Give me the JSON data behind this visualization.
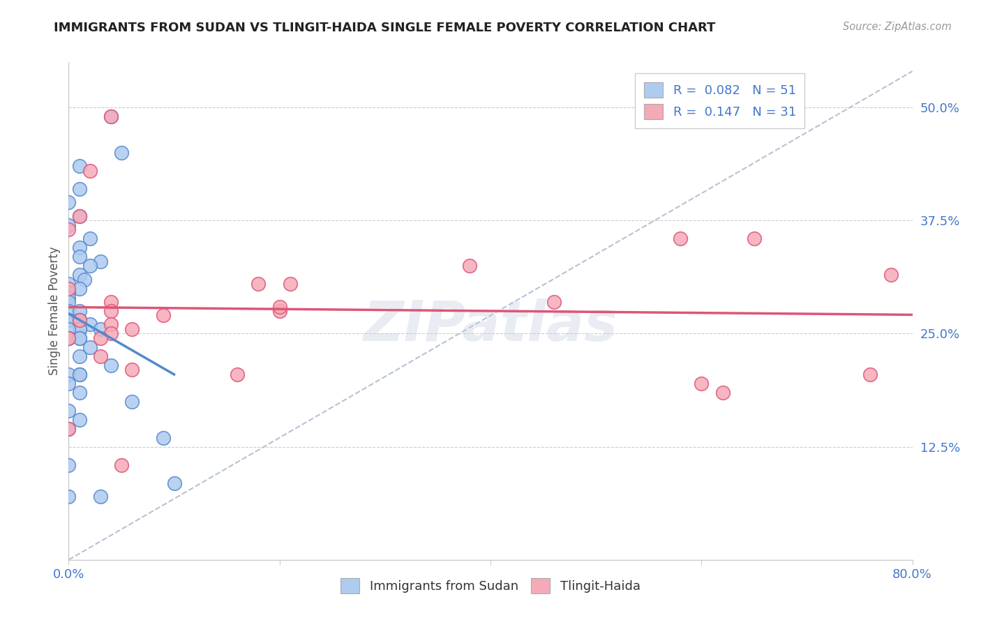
{
  "title": "IMMIGRANTS FROM SUDAN VS TLINGIT-HAIDA SINGLE FEMALE POVERTY CORRELATION CHART",
  "source": "Source: ZipAtlas.com",
  "ylabel": "Single Female Poverty",
  "xlabel": "",
  "xlim": [
    0.0,
    0.8
  ],
  "ylim": [
    0.0,
    0.55
  ],
  "yticks": [
    0.125,
    0.25,
    0.375,
    0.5
  ],
  "ytick_labels": [
    "12.5%",
    "25.0%",
    "37.5%",
    "50.0%"
  ],
  "xticks": [
    0.0,
    0.2,
    0.4,
    0.6,
    0.8
  ],
  "xtick_labels": [
    "0.0%",
    "",
    "",
    "",
    "80.0%"
  ],
  "blue_R": 0.082,
  "blue_N": 51,
  "pink_R": 0.147,
  "pink_N": 31,
  "blue_color": "#aecbf0",
  "pink_color": "#f5aab8",
  "blue_line_color": "#5588cc",
  "pink_line_color": "#dd5577",
  "trendline_gray_color": "#aab8cc",
  "blue_scatter_x": [
    0.04,
    0.05,
    0.01,
    0.01,
    0.0,
    0.01,
    0.0,
    0.02,
    0.01,
    0.01,
    0.03,
    0.02,
    0.01,
    0.015,
    0.0,
    0.01,
    0.0,
    0.0,
    0.0,
    0.0,
    0.01,
    0.01,
    0.0,
    0.0,
    0.01,
    0.02,
    0.01,
    0.03,
    0.01,
    0.0,
    0.01,
    0.0,
    0.0,
    0.01,
    0.02,
    0.01,
    0.04,
    0.01,
    0.0,
    0.01,
    0.0,
    0.01,
    0.06,
    0.0,
    0.01,
    0.0,
    0.09,
    0.0,
    0.03,
    0.0,
    0.1
  ],
  "blue_scatter_y": [
    0.49,
    0.45,
    0.435,
    0.41,
    0.395,
    0.38,
    0.37,
    0.355,
    0.345,
    0.335,
    0.33,
    0.325,
    0.315,
    0.31,
    0.305,
    0.3,
    0.295,
    0.29,
    0.285,
    0.275,
    0.275,
    0.265,
    0.265,
    0.265,
    0.265,
    0.26,
    0.255,
    0.255,
    0.255,
    0.255,
    0.245,
    0.245,
    0.245,
    0.245,
    0.235,
    0.225,
    0.215,
    0.205,
    0.205,
    0.205,
    0.195,
    0.185,
    0.175,
    0.165,
    0.155,
    0.145,
    0.135,
    0.105,
    0.07,
    0.07,
    0.085
  ],
  "pink_scatter_x": [
    0.04,
    0.02,
    0.01,
    0.0,
    0.0,
    0.04,
    0.04,
    0.01,
    0.04,
    0.06,
    0.04,
    0.0,
    0.03,
    0.03,
    0.06,
    0.09,
    0.38,
    0.62,
    0.58,
    0.65,
    0.78,
    0.76,
    0.46,
    0.2,
    0.6,
    0.0,
    0.05,
    0.16,
    0.2,
    0.18,
    0.21
  ],
  "pink_scatter_y": [
    0.49,
    0.43,
    0.38,
    0.365,
    0.3,
    0.285,
    0.275,
    0.265,
    0.26,
    0.255,
    0.25,
    0.245,
    0.245,
    0.225,
    0.21,
    0.27,
    0.325,
    0.185,
    0.355,
    0.355,
    0.315,
    0.205,
    0.285,
    0.275,
    0.195,
    0.145,
    0.105,
    0.205,
    0.28,
    0.305,
    0.305
  ],
  "legend_labels": [
    "Immigrants from Sudan",
    "Tlingit-Haida"
  ],
  "title_color": "#222222",
  "axis_color": "#888888",
  "tick_color": "#4477cc",
  "background_color": "#ffffff"
}
